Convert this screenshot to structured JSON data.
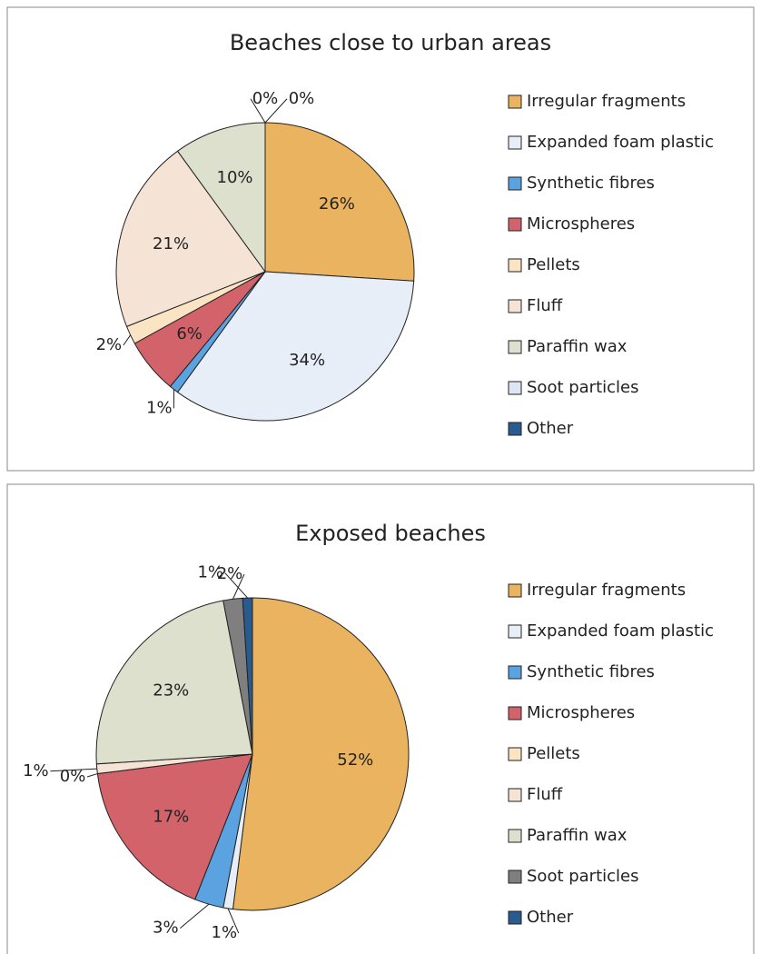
{
  "chart_data": [
    {
      "type": "pie",
      "title": "Beaches close to urban areas",
      "categories": [
        "Irregular fragments",
        "Expanded foam plastic",
        "Synthetic fibres",
        "Microspheres",
        "Pellets",
        "Fluff",
        "Paraffin wax",
        "Soot particles",
        "Other"
      ],
      "values": [
        26,
        34,
        1,
        6,
        2,
        21,
        10,
        0,
        0
      ],
      "value_labels": [
        "26%",
        "34%",
        "1%",
        "6%",
        "2%",
        "21%",
        "10%",
        "0%",
        "0%"
      ],
      "colors": [
        "#e9b35f",
        "#e8eef8",
        "#5ba3e0",
        "#d3636a",
        "#fbe4c4",
        "#f5e4d6",
        "#dde0cd",
        "#dfe6f3",
        "#2a5b8f"
      ]
    },
    {
      "type": "pie",
      "title": "Exposed beaches",
      "categories": [
        "Irregular fragments",
        "Expanded foam plastic",
        "Synthetic fibres",
        "Microspheres",
        "Pellets",
        "Fluff",
        "Paraffin wax",
        "Soot particles",
        "Other"
      ],
      "values": [
        52,
        1,
        3,
        17,
        0,
        1,
        23,
        2,
        1
      ],
      "value_labels": [
        "52%",
        "1%",
        "3%",
        "17%",
        "0%",
        "1%",
        "23%",
        "2%",
        "1%"
      ],
      "colors": [
        "#e9b35f",
        "#e8eef8",
        "#5ba3e0",
        "#d3636a",
        "#fbe4c4",
        "#f5e4d6",
        "#dde0cd",
        "#7f7f7f",
        "#2a5b8f"
      ]
    }
  ]
}
